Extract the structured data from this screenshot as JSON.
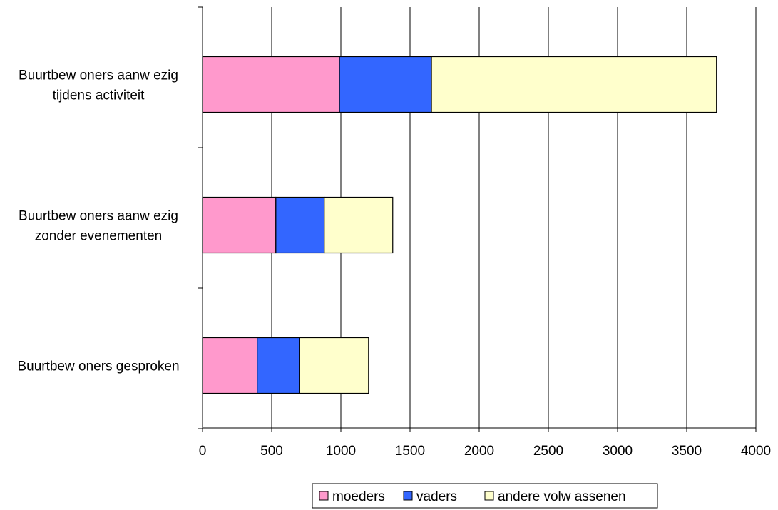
{
  "chart_data": {
    "type": "bar",
    "orientation": "horizontal",
    "stacked": true,
    "title": "",
    "xlabel": "",
    "ylabel": "",
    "categories": [
      [
        "Buurtbew oners aanw ezig",
        "tijdens activiteit"
      ],
      [
        "Buurtbew oners aanw ezig",
        "zonder evenementen"
      ],
      [
        "Buurtbew oners gesproken"
      ]
    ],
    "series": [
      {
        "name": "moeders",
        "color": "#ff99cc",
        "values": [
          990,
          530,
          395
        ]
      },
      {
        "name": "vaders",
        "color": "#3366ff",
        "values": [
          665,
          350,
          305
        ]
      },
      {
        "name": "andere volw assenen",
        "color": "#ffffcc",
        "values": [
          2060,
          495,
          500
        ]
      }
    ],
    "xlim": [
      0,
      4000
    ],
    "xticks": [
      "0",
      "500",
      "1000",
      "1500",
      "2000",
      "2500",
      "3000",
      "3500",
      "4000"
    ],
    "grid": "vertical",
    "legend_position": "bottom"
  }
}
